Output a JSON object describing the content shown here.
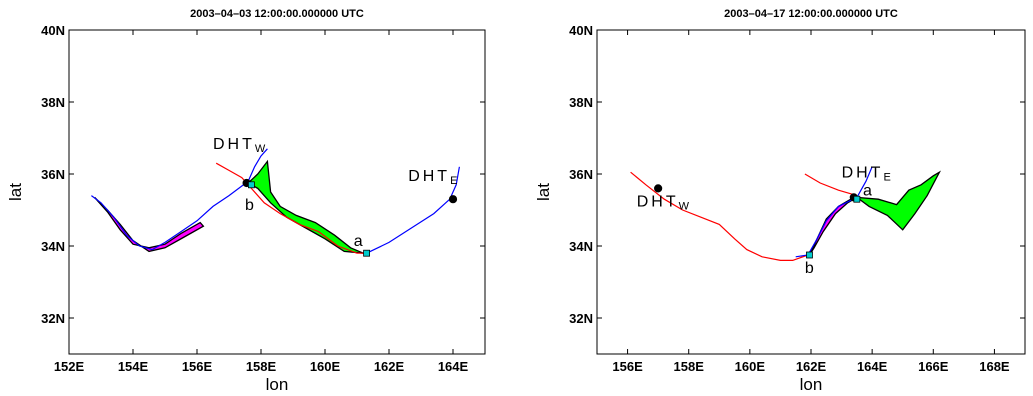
{
  "chart_data": [
    {
      "type": "line",
      "title": "2003–04–03 12:00:00.000000 UTC",
      "xlabel": "lon",
      "ylabel": "lat",
      "xlim": [
        152,
        165
      ],
      "ylim": [
        31,
        40
      ],
      "xticks": [
        152,
        154,
        156,
        158,
        160,
        162,
        164
      ],
      "xtick_labels": [
        "152E",
        "154E",
        "156E",
        "158E",
        "160E",
        "162E",
        "164E"
      ],
      "yticks": [
        32,
        34,
        36,
        38,
        40
      ],
      "ytick_labels": [
        "32N",
        "34N",
        "36N",
        "38N",
        "40N"
      ],
      "grid": false,
      "colors": {
        "red": "#ff0000",
        "blue": "#0000ff",
        "green": "#00ff00",
        "magenta": "#ff00ff",
        "marker_point": "#000000",
        "marker_square": "#00cccc"
      },
      "series": [
        {
          "color": "red",
          "x": [
            156.6,
            157.0,
            157.4,
            157.7,
            158.1,
            158.6,
            159.2,
            159.8,
            160.4,
            161.0,
            161.3
          ],
          "y": [
            36.3,
            36.1,
            35.9,
            35.6,
            35.2,
            34.9,
            34.6,
            34.4,
            34.0,
            33.8,
            33.8
          ]
        },
        {
          "color": "blue",
          "x": [
            152.7,
            153.0,
            153.4,
            153.8,
            154.2,
            154.6,
            155.0,
            155.5,
            156.0,
            156.5,
            157.0,
            157.6,
            157.8,
            158.0,
            158.2
          ],
          "y": [
            35.4,
            35.2,
            34.8,
            34.3,
            34.0,
            33.9,
            34.1,
            34.4,
            34.7,
            35.1,
            35.4,
            35.8,
            36.2,
            36.5,
            36.7
          ]
        },
        {
          "color": "blue",
          "x": [
            161.3,
            162.0,
            162.7,
            163.4,
            163.9,
            164.1,
            164.2
          ],
          "y": [
            33.8,
            34.1,
            34.5,
            34.9,
            35.3,
            35.7,
            36.2
          ]
        }
      ],
      "patches": [
        {
          "color": "magenta",
          "x": [
            152.8,
            153.2,
            153.6,
            154.0,
            154.5,
            155.0,
            155.6,
            156.2,
            156.1,
            155.5,
            155.0,
            154.5,
            154.0,
            153.6,
            153.2
          ],
          "y": [
            35.35,
            35.0,
            34.6,
            34.15,
            33.85,
            33.95,
            34.25,
            34.55,
            34.65,
            34.35,
            34.05,
            33.95,
            34.05,
            34.45,
            34.95
          ]
        },
        {
          "color": "green",
          "x": [
            157.6,
            157.9,
            158.2,
            158.3,
            158.6,
            159.1,
            159.7,
            160.3,
            160.8,
            161.2,
            160.6,
            160.0,
            159.4,
            158.8,
            158.3,
            157.9
          ],
          "y": [
            35.75,
            36.0,
            36.35,
            35.5,
            35.1,
            34.85,
            34.65,
            34.3,
            33.95,
            33.8,
            33.85,
            34.2,
            34.5,
            34.8,
            35.2,
            35.6
          ]
        }
      ],
      "markers": [
        {
          "kind": "point",
          "x": 157.55,
          "y": 35.75
        },
        {
          "kind": "point",
          "x": 164.0,
          "y": 35.3
        },
        {
          "kind": "square",
          "x": 157.7,
          "y": 35.7
        },
        {
          "kind": "square",
          "x": 161.3,
          "y": 33.8
        }
      ],
      "annotations": [
        {
          "text": "DHT",
          "subscript": "W",
          "x": 156.5,
          "y": 36.7
        },
        {
          "text": "DHT",
          "subscript": "E",
          "x": 162.6,
          "y": 35.8
        },
        {
          "text": "a",
          "x": 160.9,
          "y": 34.0
        },
        {
          "text": "b",
          "x": 157.5,
          "y": 35.0
        }
      ]
    },
    {
      "type": "line",
      "title": "2003–04–17 12:00:00.000000 UTC",
      "xlabel": "lon",
      "ylabel": "lat",
      "xlim": [
        155,
        169
      ],
      "ylim": [
        31,
        40
      ],
      "xticks": [
        156,
        158,
        160,
        162,
        164,
        166,
        168
      ],
      "xtick_labels": [
        "156E",
        "158E",
        "160E",
        "162E",
        "164E",
        "166E",
        "168E"
      ],
      "yticks": [
        32,
        34,
        36,
        38,
        40
      ],
      "ytick_labels": [
        "32N",
        "34N",
        "36N",
        "38N",
        "40N"
      ],
      "grid": false,
      "colors": {
        "red": "#ff0000",
        "blue": "#0000ff",
        "green": "#00ff00",
        "magenta": "#ff00ff",
        "marker_point": "#000000",
        "marker_square": "#00cccc"
      },
      "series": [
        {
          "color": "red",
          "x": [
            156.1,
            156.6,
            157.2,
            157.8,
            158.4,
            159.0,
            159.5,
            159.9,
            160.4,
            161.0,
            161.4,
            161.9
          ],
          "y": [
            36.05,
            35.7,
            35.3,
            35.0,
            34.8,
            34.6,
            34.2,
            33.9,
            33.7,
            33.6,
            33.6,
            33.75
          ]
        },
        {
          "color": "red",
          "x": [
            161.8,
            162.3,
            162.9,
            163.5
          ],
          "y": [
            36.0,
            35.75,
            35.55,
            35.4
          ]
        },
        {
          "color": "blue",
          "x": [
            161.5,
            161.9,
            162.2,
            162.5,
            162.9,
            163.5,
            163.8,
            164.0
          ],
          "y": [
            33.7,
            33.75,
            34.2,
            34.7,
            35.1,
            35.35,
            35.8,
            36.2
          ]
        }
      ],
      "patches": [
        {
          "color": "magenta",
          "x": [
            161.95,
            162.2,
            162.5,
            162.9,
            163.3,
            163.5,
            163.2,
            162.8,
            162.4,
            162.1
          ],
          "y": [
            33.75,
            34.2,
            34.75,
            35.1,
            35.3,
            35.35,
            35.2,
            34.9,
            34.4,
            33.95
          ]
        },
        {
          "color": "green",
          "x": [
            163.5,
            164.2,
            164.8,
            165.2,
            165.6,
            166.0,
            166.2,
            165.8,
            165.4,
            165.0,
            164.5,
            163.9
          ],
          "y": [
            35.35,
            35.3,
            35.15,
            35.55,
            35.7,
            35.95,
            36.05,
            35.4,
            34.9,
            34.45,
            34.85,
            35.1
          ]
        }
      ],
      "markers": [
        {
          "kind": "point",
          "x": 157.0,
          "y": 35.6
        },
        {
          "kind": "point",
          "x": 163.4,
          "y": 35.35
        },
        {
          "kind": "square",
          "x": 163.5,
          "y": 35.3
        },
        {
          "kind": "square",
          "x": 161.95,
          "y": 33.75
        }
      ],
      "annotations": [
        {
          "text": "DHT",
          "subscript": "W",
          "x": 156.3,
          "y": 35.1
        },
        {
          "text": "DHT",
          "subscript": "E",
          "x": 163.0,
          "y": 35.9
        },
        {
          "text": "a",
          "x": 163.7,
          "y": 35.4
        },
        {
          "text": "b",
          "x": 161.8,
          "y": 33.25
        }
      ]
    }
  ]
}
